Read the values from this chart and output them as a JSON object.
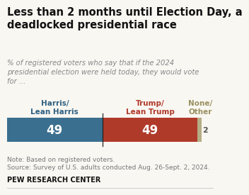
{
  "title": "Less than 2 months until Election Day, a\ndeadlocked presidential race",
  "subtitle": "% of registered voters who say that if the 2024\npresidential election were held today, they would vote\nfor ...",
  "categories": [
    "Harris/\nLean Harris",
    "Trump/\nLean Trump",
    "None/\nOther"
  ],
  "values": [
    49,
    49,
    2
  ],
  "bar_colors": [
    "#3a6f8f",
    "#b03a2a",
    "#b5ad85"
  ],
  "label_colors": [
    "#2e5f80",
    "#b03a2a",
    "#9a9060"
  ],
  "bar_value_color": "#ffffff",
  "none_value_color": "#555555",
  "note_line1": "Note: Based on registered voters.",
  "note_line2": "Source: Survey of U.S. adults conducted Aug. 26-Sept. 2, 2024.",
  "footer": "PEW RESEARCH CENTER",
  "background_color": "#f9f7f2",
  "title_fontsize": 10.5,
  "subtitle_fontsize": 7.2,
  "cat_fontsize": 7.5,
  "bar_val_fontsize": 12,
  "none_val_fontsize": 8,
  "note_fontsize": 6.5,
  "footer_fontsize": 7.0
}
